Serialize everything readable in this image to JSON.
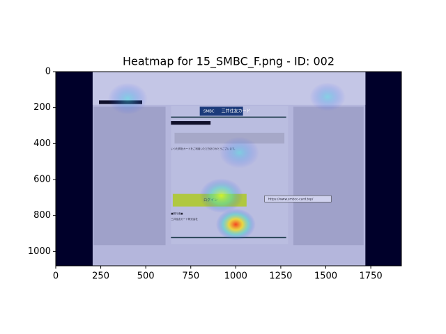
{
  "chart_data": {
    "type": "image",
    "title": "Heatmap for 15_SMBC_F.png - ID: 002",
    "xlim": [
      0,
      1920
    ],
    "ylim": [
      1080,
      0
    ],
    "xticks": [
      0,
      250,
      500,
      750,
      1000,
      1250,
      1500,
      1750
    ],
    "yticks": [
      0,
      200,
      400,
      600,
      800,
      1000
    ],
    "screen_texts": [
      "SMBC",
      "三井住友カード",
      "いつも弊社カードをご利用いただきありがとうございます。",
      "ログイン",
      "https://www.smbcc-card.top/",
      "■発行者■",
      "三井住友カード株式会社"
    ],
    "hotspots": [
      {
        "x": 1000,
        "y": 850,
        "r": 110,
        "intensity": 1.0
      },
      {
        "x": 920,
        "y": 690,
        "r": 120,
        "intensity": 0.6
      },
      {
        "x": 1020,
        "y": 450,
        "r": 110,
        "intensity": 0.4
      },
      {
        "x": 400,
        "y": 150,
        "r": 110,
        "intensity": 0.45
      },
      {
        "x": 1510,
        "y": 140,
        "r": 100,
        "intensity": 0.4
      }
    ]
  }
}
